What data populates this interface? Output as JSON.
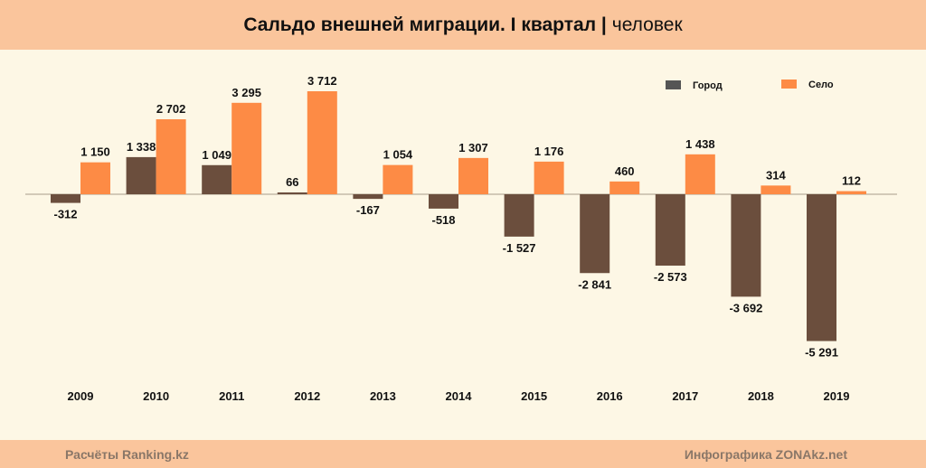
{
  "header": {
    "title_bold": "Сальдо внешней миграции. I квартал |",
    "title_unit": "человек"
  },
  "footer": {
    "left": "Расчёты Ranking.kz",
    "right": "Инфографика ZONAkz.net"
  },
  "chart_data": {
    "type": "bar",
    "title": "Сальдо внешней миграции. I квартал | человек",
    "categories": [
      "2009",
      "2010",
      "2011",
      "2012",
      "2013",
      "2014",
      "2015",
      "2016",
      "2017",
      "2018",
      "2019"
    ],
    "series": [
      {
        "name": "Город",
        "color": "#6b4e3d",
        "legend_color": "#555555",
        "values": [
          -312,
          1338,
          1049,
          66,
          -167,
          -518,
          -1527,
          -2841,
          -2573,
          -3692,
          -5291
        ],
        "labels": [
          "-312",
          "1 338",
          "1 049",
          "66",
          "-167",
          "-518",
          "-1 527",
          "-2 841",
          "-2 573",
          "-3 692",
          "-5 291"
        ]
      },
      {
        "name": "Село",
        "color": "#fd8b45",
        "legend_color": "#fd8b45",
        "values": [
          1150,
          2702,
          3295,
          3712,
          1054,
          1307,
          1176,
          460,
          1438,
          314,
          112
        ],
        "labels": [
          "1 150",
          "2 702",
          "3 295",
          "3 712",
          "1 054",
          "1 307",
          "1 176",
          "460",
          "1 438",
          "314",
          "112"
        ]
      }
    ],
    "legend_position": "top-right",
    "grid": false
  }
}
